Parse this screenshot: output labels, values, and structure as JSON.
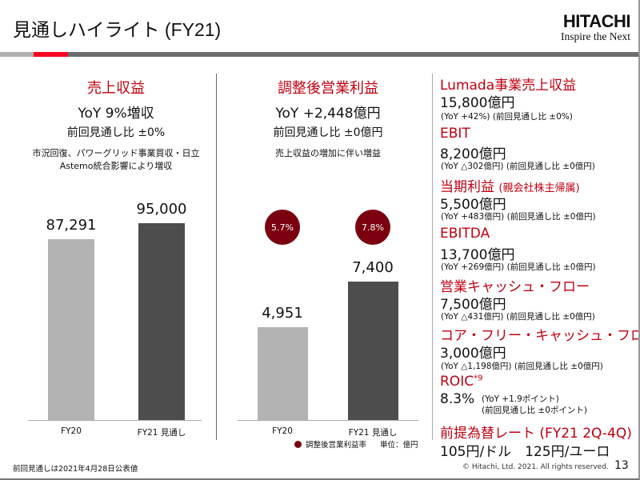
{
  "header": {
    "title": "見通しハイライト (FY21)",
    "logo": "HITACHI",
    "tagline": "Inspire the Next"
  },
  "colors": {
    "accent": "#c00010",
    "bubble": "#7a0010",
    "bar_fy20": "#b3b3b3",
    "bar_fy21": "#4d4d4d"
  },
  "revenue": {
    "heading": "売上収益",
    "yoy": "YoY 9%増収",
    "vs_prev": "前回見通し比 ±0%",
    "note1": "市況回復、パワーグリッド事業買収・日立",
    "note2": "Astemo統合影響により増収"
  },
  "adj_op": {
    "heading": "調整後営業利益",
    "yoy": "YoY +2,448億円",
    "vs_prev": "前回見通し比 ±0億円",
    "note1": "売上収益の増加に伴い増益",
    "legend": "調整後営業利益率",
    "unit": "単位：億円"
  },
  "chart_data": [
    {
      "type": "bar",
      "categories": [
        "FY20",
        "FY21 見通し"
      ],
      "values": [
        87291,
        95000
      ],
      "value_labels": [
        "87,291",
        "95,000"
      ]
    },
    {
      "type": "bar",
      "categories": [
        "FY20",
        "FY21 見通し"
      ],
      "values": [
        4951,
        7400
      ],
      "value_labels": [
        "4,951",
        "7,400"
      ],
      "margin_labels": [
        "5.7%",
        "7.8%"
      ]
    }
  ],
  "kpis": [
    {
      "label": "Lumada事業売上収益",
      "value": "15,800億円",
      "note": "(YoY +42%) (前回見通し比 ±0%)"
    },
    {
      "label": "EBIT",
      "value": "8,200億円",
      "note": "(YoY △302億円) (前回見通し比 ±0億円)"
    },
    {
      "label": "当期利益",
      "label_sub": "(親会社株主帰属)",
      "value": "5,500億円",
      "note": "(YoY +483億円) (前回見通し比 ±0億円)"
    },
    {
      "label": "EBITDA",
      "value": "13,700億円",
      "note": "(YoY +269億円) (前回見通し比 ±0億円)"
    },
    {
      "label": "営業キャッシュ・フロー",
      "value": "7,500億円",
      "note": "(YoY △431億円) (前回見通し比 ±0億円)"
    },
    {
      "label": "コア・フリー・キャッシュ・フロー",
      "value": "3,000億円",
      "note": "(YoY △1,198億円) (前回見通し比 ±0億円)"
    },
    {
      "label": "ROIC",
      "label_sup": "*9",
      "value": "8.3%",
      "note": "(YoY +1.9ポイント)",
      "note2": "(前回見通し比 ±0ポイント)"
    },
    {
      "label": "前提為替レート (FY21 2Q-4Q)",
      "value": "105円/ドル　125円/ユーロ"
    }
  ],
  "footer": {
    "note": "前回見通しは2021年4月28日公表値",
    "copyright": "© Hitachi, Ltd. 2021. All rights reserved.",
    "page": "13"
  }
}
